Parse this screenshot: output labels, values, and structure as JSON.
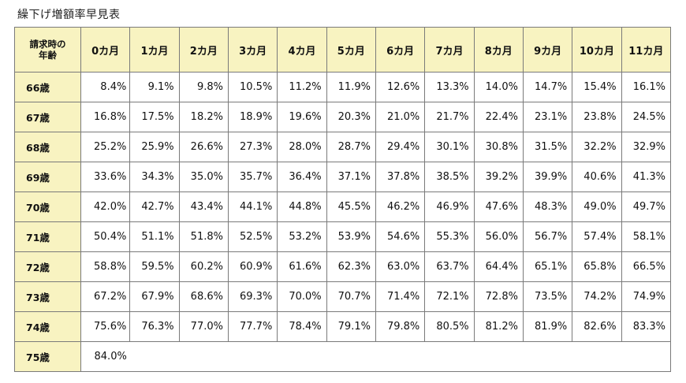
{
  "title": "繰下げ増額率早見表",
  "table": {
    "corner_label_line1": "請求時の",
    "corner_label_line2": "年齢",
    "month_headers": [
      "0カ月",
      "1カ月",
      "2カ月",
      "3カ月",
      "4カ月",
      "5カ月",
      "6カ月",
      "7カ月",
      "8カ月",
      "9カ月",
      "10カ月",
      "11カ月"
    ],
    "rows": [
      {
        "age": "66歳",
        "values": [
          "8.4%",
          "9.1%",
          "9.8%",
          "10.5%",
          "11.2%",
          "11.9%",
          "12.6%",
          "13.3%",
          "14.0%",
          "14.7%",
          "15.4%",
          "16.1%"
        ]
      },
      {
        "age": "67歳",
        "values": [
          "16.8%",
          "17.5%",
          "18.2%",
          "18.9%",
          "19.6%",
          "20.3%",
          "21.0%",
          "21.7%",
          "22.4%",
          "23.1%",
          "23.8%",
          "24.5%"
        ]
      },
      {
        "age": "68歳",
        "values": [
          "25.2%",
          "25.9%",
          "26.6%",
          "27.3%",
          "28.0%",
          "28.7%",
          "29.4%",
          "30.1%",
          "30.8%",
          "31.5%",
          "32.2%",
          "32.9%"
        ]
      },
      {
        "age": "69歳",
        "values": [
          "33.6%",
          "34.3%",
          "35.0%",
          "35.7%",
          "36.4%",
          "37.1%",
          "37.8%",
          "38.5%",
          "39.2%",
          "39.9%",
          "40.6%",
          "41.3%"
        ]
      },
      {
        "age": "70歳",
        "values": [
          "42.0%",
          "42.7%",
          "43.4%",
          "44.1%",
          "44.8%",
          "45.5%",
          "46.2%",
          "46.9%",
          "47.6%",
          "48.3%",
          "49.0%",
          "49.7%"
        ]
      },
      {
        "age": "71歳",
        "values": [
          "50.4%",
          "51.1%",
          "51.8%",
          "52.5%",
          "53.2%",
          "53.9%",
          "54.6%",
          "55.3%",
          "56.0%",
          "56.7%",
          "57.4%",
          "58.1%"
        ]
      },
      {
        "age": "72歳",
        "values": [
          "58.8%",
          "59.5%",
          "60.2%",
          "60.9%",
          "61.6%",
          "62.3%",
          "63.0%",
          "63.7%",
          "64.4%",
          "65.1%",
          "65.8%",
          "66.5%"
        ]
      },
      {
        "age": "73歳",
        "values": [
          "67.2%",
          "67.9%",
          "68.6%",
          "69.3%",
          "70.0%",
          "70.7%",
          "71.4%",
          "72.1%",
          "72.8%",
          "73.5%",
          "74.2%",
          "74.9%"
        ]
      },
      {
        "age": "74歳",
        "values": [
          "75.6%",
          "76.3%",
          "77.0%",
          "77.7%",
          "78.4%",
          "79.1%",
          "79.8%",
          "80.5%",
          "81.2%",
          "81.9%",
          "82.6%",
          "83.3%"
        ]
      },
      {
        "age": "75歳",
        "values": [
          "84.0%"
        ]
      }
    ]
  },
  "colors": {
    "header_background": "#f8f3c1",
    "border": "#7a7a7a",
    "cell_background": "#ffffff"
  }
}
